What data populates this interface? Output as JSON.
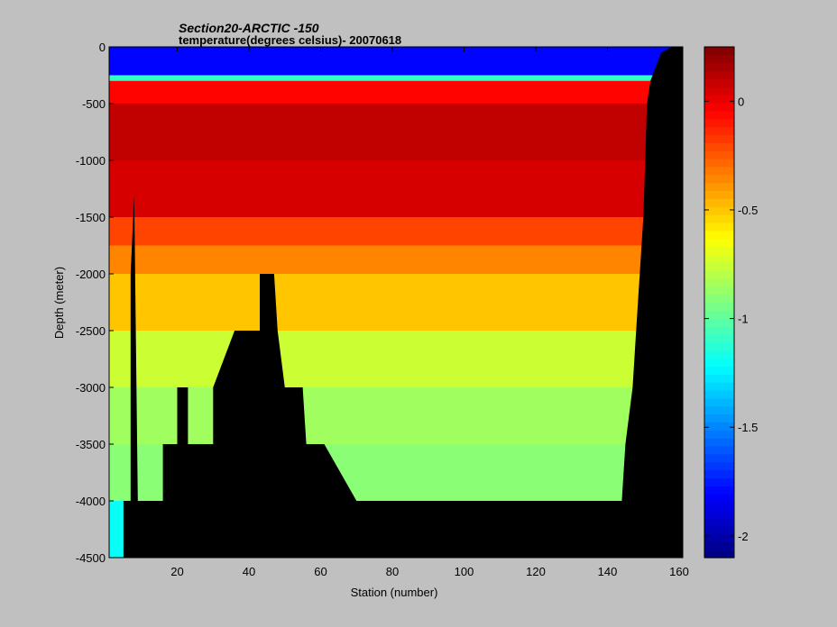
{
  "title": "Section20-ARCTIC -150",
  "subtitle": "temperature(degrees celsius)- 20070618",
  "chart_data": {
    "type": "heatmap",
    "title": "Section20-ARCTIC -150",
    "subtitle": "temperature(degrees celsius)- 20070618",
    "xlabel": "Station (number)",
    "ylabel": "Depth (meter)",
    "xlim": [
      1,
      161
    ],
    "ylim": [
      -4500,
      0
    ],
    "xticks": [
      20,
      40,
      60,
      80,
      100,
      120,
      140,
      160
    ],
    "yticks": [
      0,
      -500,
      -1000,
      -1500,
      -2000,
      -2500,
      -3000,
      -3500,
      -4000,
      -4500
    ],
    "colorbar": {
      "range": [
        -2.1,
        0.25
      ],
      "ticks": [
        0,
        -0.5,
        -1,
        -1.5,
        -2
      ],
      "colormap": "jet"
    },
    "depth_layers": [
      {
        "depth": [
          0,
          -250
        ],
        "temp": -1.8
      },
      {
        "depth": [
          -250,
          -300
        ],
        "temp": -1.1
      },
      {
        "depth": [
          -300,
          -500
        ],
        "temp": -0.05
      },
      {
        "depth": [
          -500,
          -1000
        ],
        "temp": 0.1
      },
      {
        "depth": [
          -1000,
          -1500
        ],
        "temp": 0.05
      },
      {
        "depth": [
          -1500,
          -1750
        ],
        "temp": -0.2
      },
      {
        "depth": [
          -1750,
          -2000
        ],
        "temp": -0.35
      },
      {
        "depth": [
          -2000,
          -2500
        ],
        "temp": -0.5
      },
      {
        "depth": [
          -2500,
          -3000
        ],
        "temp": -0.75
      },
      {
        "depth": [
          -3000,
          -3500
        ],
        "temp": -0.85
      },
      {
        "depth": [
          -3500,
          -4000
        ],
        "temp": -0.9
      },
      {
        "depth": [
          -4000,
          -4500
        ],
        "temp": -1.2
      }
    ],
    "bathymetry": [
      {
        "station": 1,
        "depth": -4500
      },
      {
        "station": 5,
        "depth": -4500
      },
      {
        "station": 5,
        "depth": -4000
      },
      {
        "station": 7,
        "depth": -4000
      },
      {
        "station": 7,
        "depth": -2000
      },
      {
        "station": 8,
        "depth": -1300
      },
      {
        "station": 9,
        "depth": -4000
      },
      {
        "station": 16,
        "depth": -4000
      },
      {
        "station": 16,
        "depth": -3500
      },
      {
        "station": 20,
        "depth": -3500
      },
      {
        "station": 20,
        "depth": -3000
      },
      {
        "station": 23,
        "depth": -3000
      },
      {
        "station": 23,
        "depth": -3500
      },
      {
        "station": 30,
        "depth": -3500
      },
      {
        "station": 30,
        "depth": -3000
      },
      {
        "station": 36,
        "depth": -2500
      },
      {
        "station": 43,
        "depth": -2500
      },
      {
        "station": 43,
        "depth": -2000
      },
      {
        "station": 47,
        "depth": -2000
      },
      {
        "station": 48,
        "depth": -2500
      },
      {
        "station": 50,
        "depth": -3000
      },
      {
        "station": 55,
        "depth": -3000
      },
      {
        "station": 56,
        "depth": -3500
      },
      {
        "station": 61,
        "depth": -3500
      },
      {
        "station": 70,
        "depth": -4000
      },
      {
        "station": 144,
        "depth": -4000
      },
      {
        "station": 145,
        "depth": -3500
      },
      {
        "station": 147,
        "depth": -3000
      },
      {
        "station": 148,
        "depth": -2500
      },
      {
        "station": 150,
        "depth": -1500
      },
      {
        "station": 151,
        "depth": -500
      },
      {
        "station": 152,
        "depth": -300
      },
      {
        "station": 155,
        "depth": -50
      },
      {
        "station": 158,
        "depth": 0
      },
      {
        "station": 161,
        "depth": 0
      },
      {
        "station": 161,
        "depth": -4500
      }
    ]
  }
}
